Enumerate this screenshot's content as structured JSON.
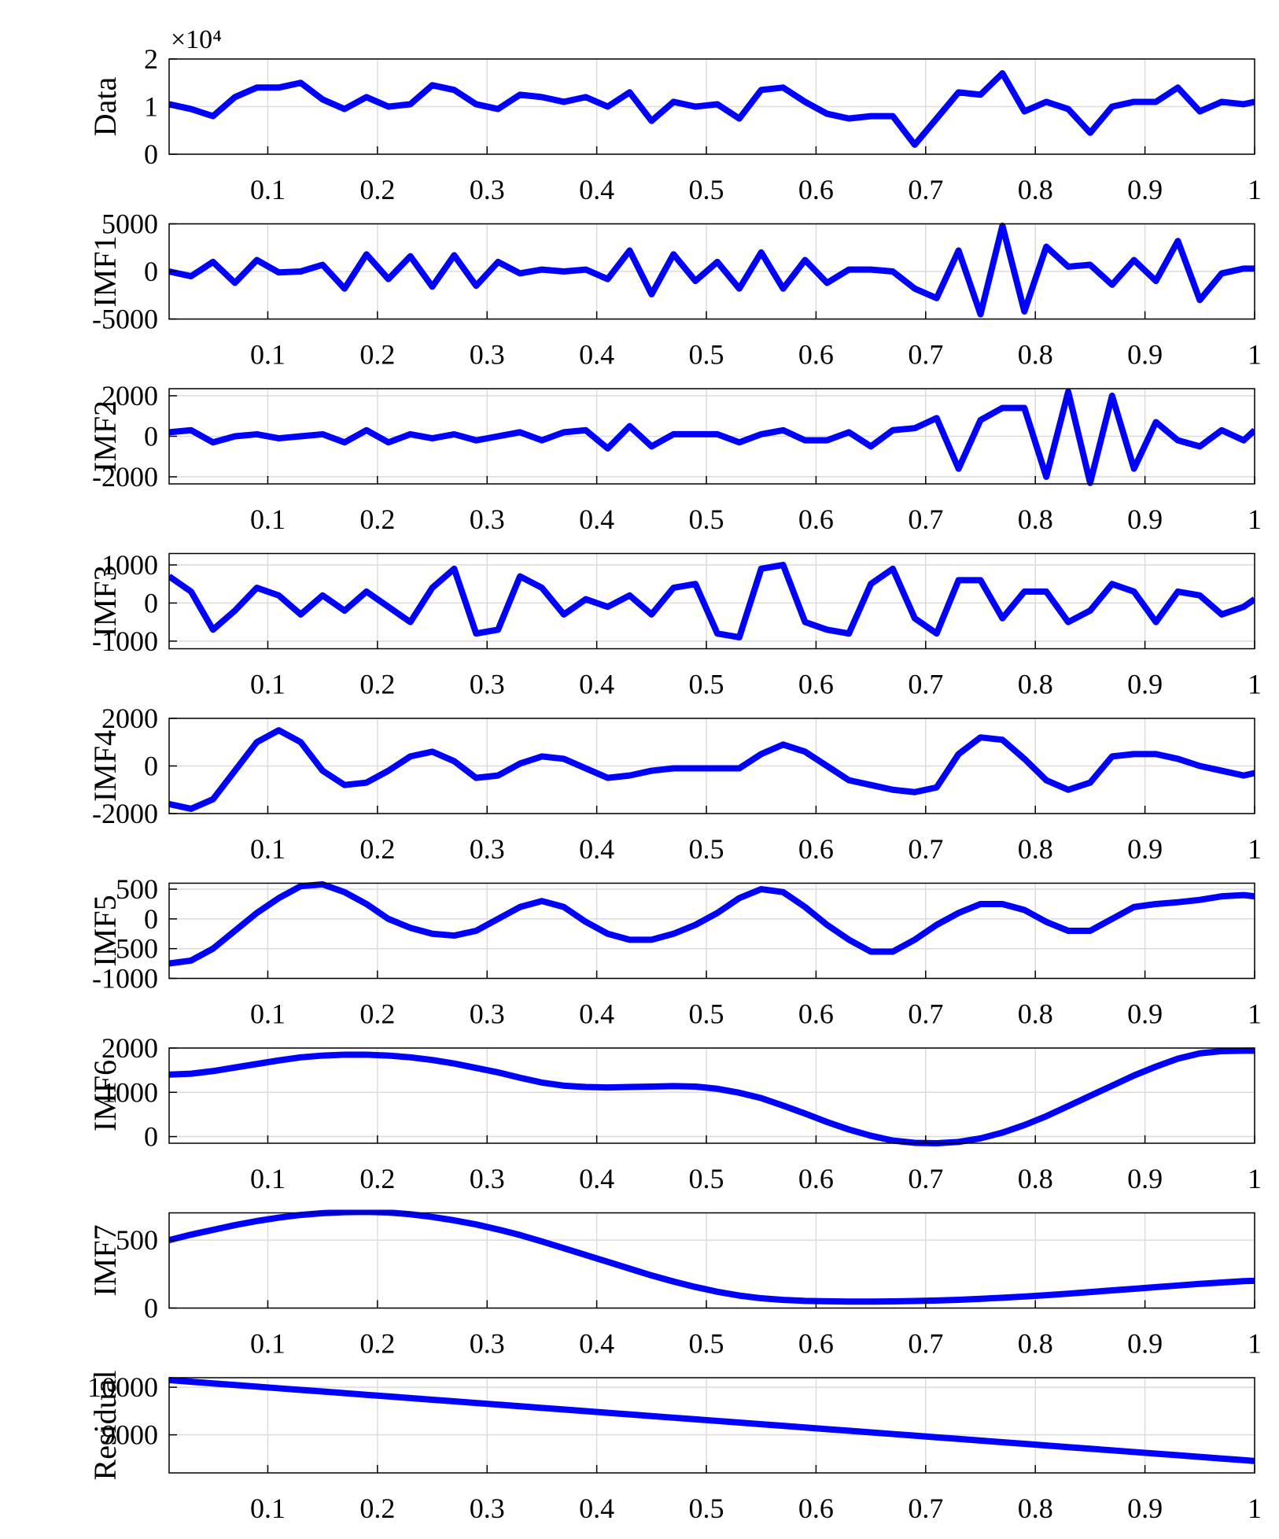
{
  "chart_data": [
    {
      "type": "line",
      "ylabel": "Data",
      "y_exponent": "×10⁴",
      "color": "#0000ff",
      "grid": true,
      "x": [
        0.01,
        0.03,
        0.05,
        0.07,
        0.09,
        0.11,
        0.13,
        0.15,
        0.17,
        0.19,
        0.21,
        0.23,
        0.25,
        0.27,
        0.29,
        0.31,
        0.33,
        0.35,
        0.37,
        0.39,
        0.41,
        0.43,
        0.45,
        0.47,
        0.49,
        0.51,
        0.53,
        0.55,
        0.57,
        0.59,
        0.61,
        0.63,
        0.65,
        0.67,
        0.69,
        0.71,
        0.73,
        0.75,
        0.77,
        0.79,
        0.81,
        0.83,
        0.85,
        0.87,
        0.89,
        0.91,
        0.93,
        0.95,
        0.97,
        0.99,
        1.0
      ],
      "values": [
        1.05,
        0.95,
        0.8,
        1.2,
        1.4,
        1.4,
        1.5,
        1.15,
        0.95,
        1.2,
        1.0,
        1.05,
        1.45,
        1.35,
        1.05,
        0.95,
        1.25,
        1.2,
        1.1,
        1.2,
        1.0,
        1.3,
        0.7,
        1.1,
        1.0,
        1.05,
        0.75,
        1.35,
        1.4,
        1.1,
        0.85,
        0.75,
        0.8,
        0.8,
        0.2,
        0.75,
        1.3,
        1.25,
        1.7,
        0.9,
        1.1,
        0.95,
        0.45,
        1.0,
        1.1,
        1.1,
        1.4,
        0.9,
        1.1,
        1.05,
        1.1
      ],
      "xlim": [
        0.01,
        1
      ],
      "xticks": [
        0.1,
        0.2,
        0.3,
        0.4,
        0.5,
        0.6,
        0.7,
        0.8,
        0.9,
        1
      ],
      "ylim": [
        0,
        2
      ],
      "yticks": [
        0,
        1,
        2
      ]
    },
    {
      "type": "line",
      "ylabel": "IMF1",
      "color": "#0000ff",
      "grid": true,
      "x": [
        0.01,
        0.03,
        0.05,
        0.07,
        0.09,
        0.11,
        0.13,
        0.15,
        0.17,
        0.19,
        0.21,
        0.23,
        0.25,
        0.27,
        0.29,
        0.31,
        0.33,
        0.35,
        0.37,
        0.39,
        0.41,
        0.43,
        0.45,
        0.47,
        0.49,
        0.51,
        0.53,
        0.55,
        0.57,
        0.59,
        0.61,
        0.63,
        0.65,
        0.67,
        0.69,
        0.71,
        0.73,
        0.75,
        0.77,
        0.79,
        0.81,
        0.83,
        0.85,
        0.87,
        0.89,
        0.91,
        0.93,
        0.95,
        0.97,
        0.99,
        1.0
      ],
      "values": [
        0,
        -500,
        1000,
        -1200,
        1200,
        -100,
        0,
        700,
        -1800,
        1800,
        -800,
        1600,
        -1600,
        1700,
        -1500,
        1000,
        -200,
        200,
        0,
        200,
        -800,
        2200,
        -2400,
        1800,
        -1000,
        1000,
        -1800,
        2000,
        -1800,
        1200,
        -1200,
        200,
        200,
        0,
        -1800,
        -2800,
        2200,
        -4500,
        4800,
        -4200,
        2600,
        500,
        700,
        -1400,
        1200,
        -1000,
        3200,
        -3000,
        -200,
        300,
        300
      ],
      "xlim": [
        0.01,
        1
      ],
      "xticks": [
        0.1,
        0.2,
        0.3,
        0.4,
        0.5,
        0.6,
        0.7,
        0.8,
        0.9,
        1
      ],
      "ylim": [
        -5000,
        5000
      ],
      "yticks": [
        -5000,
        0,
        5000
      ]
    },
    {
      "type": "line",
      "ylabel": "IMF2",
      "color": "#0000ff",
      "grid": true,
      "x": [
        0.01,
        0.03,
        0.05,
        0.07,
        0.09,
        0.11,
        0.13,
        0.15,
        0.17,
        0.19,
        0.21,
        0.23,
        0.25,
        0.27,
        0.29,
        0.31,
        0.33,
        0.35,
        0.37,
        0.39,
        0.41,
        0.43,
        0.45,
        0.47,
        0.49,
        0.51,
        0.53,
        0.55,
        0.57,
        0.59,
        0.61,
        0.63,
        0.65,
        0.67,
        0.69,
        0.71,
        0.73,
        0.75,
        0.77,
        0.79,
        0.81,
        0.83,
        0.85,
        0.87,
        0.89,
        0.91,
        0.93,
        0.95,
        0.97,
        0.99,
        1.0
      ],
      "values": [
        200,
        300,
        -300,
        0,
        100,
        -100,
        0,
        100,
        -300,
        300,
        -300,
        100,
        -100,
        100,
        -200,
        0,
        200,
        -200,
        200,
        300,
        -600,
        500,
        -500,
        100,
        100,
        100,
        -300,
        100,
        300,
        -200,
        -200,
        200,
        -500,
        300,
        400,
        900,
        -1600,
        800,
        1400,
        1400,
        -2000,
        2200,
        -2300,
        2000,
        -1600,
        700,
        -200,
        -500,
        300,
        -200,
        300
      ],
      "xlim": [
        0.01,
        1
      ],
      "xticks": [
        0.1,
        0.2,
        0.3,
        0.4,
        0.5,
        0.6,
        0.7,
        0.8,
        0.9,
        1
      ],
      "ylim": [
        -2350,
        2350
      ],
      "yticks": [
        -2000,
        0,
        2000
      ]
    },
    {
      "type": "line",
      "ylabel": "IMF3",
      "color": "#0000ff",
      "grid": true,
      "x": [
        0.01,
        0.03,
        0.05,
        0.07,
        0.09,
        0.11,
        0.13,
        0.15,
        0.17,
        0.19,
        0.21,
        0.23,
        0.25,
        0.27,
        0.29,
        0.31,
        0.33,
        0.35,
        0.37,
        0.39,
        0.41,
        0.43,
        0.45,
        0.47,
        0.49,
        0.51,
        0.53,
        0.55,
        0.57,
        0.59,
        0.61,
        0.63,
        0.65,
        0.67,
        0.69,
        0.71,
        0.73,
        0.75,
        0.77,
        0.79,
        0.81,
        0.83,
        0.85,
        0.87,
        0.89,
        0.91,
        0.93,
        0.95,
        0.97,
        0.99,
        1.0
      ],
      "values": [
        700,
        300,
        -700,
        -200,
        400,
        200,
        -300,
        200,
        -200,
        300,
        -100,
        -500,
        400,
        900,
        -800,
        -700,
        700,
        400,
        -300,
        100,
        -100,
        200,
        -300,
        400,
        500,
        -800,
        -900,
        900,
        1000,
        -500,
        -700,
        -800,
        500,
        900,
        -400,
        -800,
        600,
        600,
        -400,
        300,
        300,
        -500,
        -200,
        500,
        300,
        -500,
        300,
        200,
        -300,
        -100,
        100
      ],
      "xlim": [
        0.01,
        1
      ],
      "xticks": [
        0.1,
        0.2,
        0.3,
        0.4,
        0.5,
        0.6,
        0.7,
        0.8,
        0.9,
        1
      ],
      "ylim": [
        -1200,
        1300
      ],
      "yticks": [
        -1000,
        0,
        1000
      ]
    },
    {
      "type": "line",
      "ylabel": "IMF4",
      "color": "#0000ff",
      "grid": true,
      "x": [
        0.01,
        0.03,
        0.05,
        0.07,
        0.09,
        0.11,
        0.13,
        0.15,
        0.17,
        0.19,
        0.21,
        0.23,
        0.25,
        0.27,
        0.29,
        0.31,
        0.33,
        0.35,
        0.37,
        0.39,
        0.41,
        0.43,
        0.45,
        0.47,
        0.49,
        0.51,
        0.53,
        0.55,
        0.57,
        0.59,
        0.61,
        0.63,
        0.65,
        0.67,
        0.69,
        0.71,
        0.73,
        0.75,
        0.77,
        0.79,
        0.81,
        0.83,
        0.85,
        0.87,
        0.89,
        0.91,
        0.93,
        0.95,
        0.97,
        0.99,
        1.0
      ],
      "values": [
        -1600,
        -1800,
        -1400,
        -200,
        1000,
        1500,
        1000,
        -200,
        -800,
        -700,
        -200,
        400,
        600,
        200,
        -500,
        -400,
        100,
        400,
        300,
        -100,
        -500,
        -400,
        -200,
        -100,
        -100,
        -100,
        -100,
        500,
        900,
        600,
        0,
        -600,
        -800,
        -1000,
        -1100,
        -900,
        500,
        1200,
        1100,
        300,
        -600,
        -1000,
        -700,
        400,
        500,
        500,
        300,
        0,
        -200,
        -400,
        -300
      ],
      "xlim": [
        0.01,
        1
      ],
      "xticks": [
        0.1,
        0.2,
        0.3,
        0.4,
        0.5,
        0.6,
        0.7,
        0.8,
        0.9,
        1
      ],
      "ylim": [
        -2000,
        2000
      ],
      "yticks": [
        -2000,
        0,
        2000
      ]
    },
    {
      "type": "line",
      "ylabel": "IMF5",
      "color": "#0000ff",
      "grid": true,
      "x": [
        0.01,
        0.03,
        0.05,
        0.07,
        0.09,
        0.11,
        0.13,
        0.15,
        0.17,
        0.19,
        0.21,
        0.23,
        0.25,
        0.27,
        0.29,
        0.31,
        0.33,
        0.35,
        0.37,
        0.39,
        0.41,
        0.43,
        0.45,
        0.47,
        0.49,
        0.51,
        0.53,
        0.55,
        0.57,
        0.59,
        0.61,
        0.63,
        0.65,
        0.67,
        0.69,
        0.71,
        0.73,
        0.75,
        0.77,
        0.79,
        0.81,
        0.83,
        0.85,
        0.87,
        0.89,
        0.91,
        0.93,
        0.95,
        0.97,
        0.99,
        1.0
      ],
      "values": [
        -750,
        -700,
        -500,
        -200,
        100,
        350,
        550,
        580,
        450,
        250,
        0,
        -150,
        -250,
        -280,
        -200,
        0,
        200,
        300,
        200,
        -50,
        -250,
        -350,
        -350,
        -250,
        -100,
        100,
        350,
        500,
        450,
        200,
        -100,
        -350,
        -550,
        -550,
        -350,
        -100,
        100,
        250,
        250,
        150,
        -50,
        -200,
        -200,
        0,
        200,
        250,
        280,
        320,
        380,
        400,
        380
      ],
      "xlim": [
        0.01,
        1
      ],
      "xticks": [
        0.1,
        0.2,
        0.3,
        0.4,
        0.5,
        0.6,
        0.7,
        0.8,
        0.9,
        1
      ],
      "ylim": [
        -1000,
        600
      ],
      "yticks": [
        -1000,
        -500,
        0,
        500
      ]
    },
    {
      "type": "line",
      "ylabel": "IMF6",
      "color": "#0000ff",
      "grid": true,
      "x": [
        0.01,
        0.03,
        0.05,
        0.07,
        0.09,
        0.11,
        0.13,
        0.15,
        0.17,
        0.19,
        0.21,
        0.23,
        0.25,
        0.27,
        0.29,
        0.31,
        0.33,
        0.35,
        0.37,
        0.39,
        0.41,
        0.43,
        0.45,
        0.47,
        0.49,
        0.51,
        0.53,
        0.55,
        0.57,
        0.59,
        0.61,
        0.63,
        0.65,
        0.67,
        0.69,
        0.71,
        0.73,
        0.75,
        0.77,
        0.79,
        0.81,
        0.83,
        0.85,
        0.87,
        0.89,
        0.91,
        0.93,
        0.95,
        0.97,
        0.99,
        1.0
      ],
      "values": [
        1400,
        1420,
        1480,
        1560,
        1640,
        1720,
        1790,
        1830,
        1850,
        1850,
        1830,
        1790,
        1730,
        1650,
        1550,
        1450,
        1330,
        1220,
        1150,
        1120,
        1110,
        1120,
        1130,
        1140,
        1130,
        1080,
        990,
        870,
        700,
        520,
        330,
        160,
        20,
        -90,
        -140,
        -150,
        -120,
        -40,
        90,
        260,
        460,
        690,
        920,
        1150,
        1380,
        1580,
        1760,
        1880,
        1930,
        1940,
        1940
      ],
      "xlim": [
        0.01,
        1
      ],
      "xticks": [
        0.1,
        0.2,
        0.3,
        0.4,
        0.5,
        0.6,
        0.7,
        0.8,
        0.9,
        1
      ],
      "ylim": [
        -150,
        2000
      ],
      "yticks": [
        0,
        1000,
        2000
      ]
    },
    {
      "type": "line",
      "ylabel": "IMF7",
      "color": "#0000ff",
      "grid": true,
      "x": [
        0.01,
        0.03,
        0.05,
        0.07,
        0.09,
        0.11,
        0.13,
        0.15,
        0.17,
        0.19,
        0.21,
        0.23,
        0.25,
        0.27,
        0.29,
        0.31,
        0.33,
        0.35,
        0.37,
        0.39,
        0.41,
        0.43,
        0.45,
        0.47,
        0.49,
        0.51,
        0.53,
        0.55,
        0.57,
        0.59,
        0.61,
        0.63,
        0.65,
        0.67,
        0.69,
        0.71,
        0.73,
        0.75,
        0.77,
        0.79,
        0.81,
        0.83,
        0.85,
        0.87,
        0.89,
        0.91,
        0.93,
        0.95,
        0.97,
        0.99,
        1.0
      ],
      "values": [
        500,
        540,
        575,
        610,
        640,
        665,
        685,
        698,
        705,
        707,
        703,
        690,
        670,
        645,
        615,
        578,
        537,
        490,
        440,
        390,
        340,
        290,
        240,
        195,
        155,
        120,
        92,
        72,
        60,
        53,
        50,
        48,
        48,
        49,
        52,
        56,
        61,
        68,
        76,
        85,
        95,
        106,
        118,
        130,
        142,
        154,
        166,
        178,
        188,
        198,
        200
      ],
      "xlim": [
        0.01,
        1
      ],
      "xticks": [
        0.1,
        0.2,
        0.3,
        0.4,
        0.5,
        0.6,
        0.7,
        0.8,
        0.9,
        1
      ],
      "ylim": [
        0,
        700
      ],
      "yticks": [
        0,
        500
      ]
    },
    {
      "type": "line",
      "ylabel": "Residual",
      "color": "#0000ff",
      "grid": true,
      "x": [
        0.01,
        0.03,
        0.05,
        0.07,
        0.09,
        0.11,
        0.13,
        0.15,
        0.17,
        0.19,
        0.21,
        0.23,
        0.25,
        0.27,
        0.29,
        0.31,
        0.33,
        0.35,
        0.37,
        0.39,
        0.41,
        0.43,
        0.45,
        0.47,
        0.49,
        0.51,
        0.53,
        0.55,
        0.57,
        0.59,
        0.61,
        0.63,
        0.65,
        0.67,
        0.69,
        0.71,
        0.73,
        0.75,
        0.77,
        0.79,
        0.81,
        0.83,
        0.85,
        0.87,
        0.89,
        0.91,
        0.93,
        0.95,
        0.97,
        0.99,
        1.0
      ],
      "values": [
        10150,
        10116,
        10081,
        10047,
        10013,
        9978,
        9944,
        9910,
        9875,
        9841,
        9807,
        9772,
        9738,
        9704,
        9669,
        9635,
        9601,
        9566,
        9532,
        9498,
        9463,
        9429,
        9395,
        9360,
        9326,
        9292,
        9257,
        9223,
        9189,
        9154,
        9120,
        9086,
        9051,
        9017,
        8983,
        8948,
        8914,
        8880,
        8845,
        8811,
        8777,
        8742,
        8708,
        8674,
        8639,
        8605,
        8571,
        8536,
        8502,
        8468,
        8450
      ],
      "xlim": [
        0.01,
        1
      ],
      "xticks": [
        0.1,
        0.2,
        0.3,
        0.4,
        0.5,
        0.6,
        0.7,
        0.8,
        0.9,
        1
      ],
      "ylim": [
        8200,
        10200
      ],
      "yticks": [
        9000,
        10000
      ]
    }
  ]
}
